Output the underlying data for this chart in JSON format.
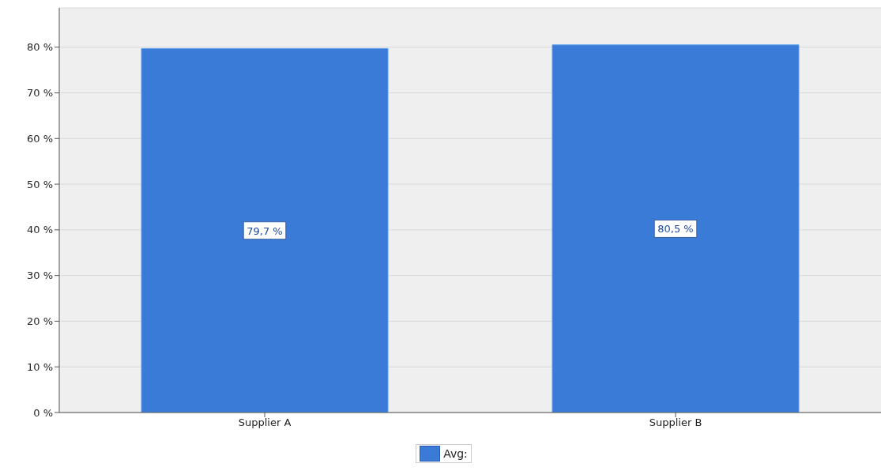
{
  "chart_data": {
    "type": "bar",
    "categories": [
      "Supplier A",
      "Supplier B"
    ],
    "series": [
      {
        "name": "Avg:",
        "color": "#3a7bd8",
        "values": [
          79.7,
          80.5
        ],
        "value_labels": [
          "79,7 %",
          "80,5 %"
        ]
      }
    ],
    "ylim": [
      0,
      88.6
    ],
    "yticks": [
      {
        "value": 0,
        "label": "0 %"
      },
      {
        "value": 10,
        "label": "10 %"
      },
      {
        "value": 20,
        "label": "20 %"
      },
      {
        "value": 30,
        "label": "30 %"
      },
      {
        "value": 40,
        "label": "40 %"
      },
      {
        "value": 50,
        "label": "50 %"
      },
      {
        "value": 60,
        "label": "60 %"
      },
      {
        "value": 70,
        "label": "70 %"
      },
      {
        "value": 80,
        "label": "80 %"
      }
    ],
    "grid": "y",
    "legend": "bottom"
  }
}
